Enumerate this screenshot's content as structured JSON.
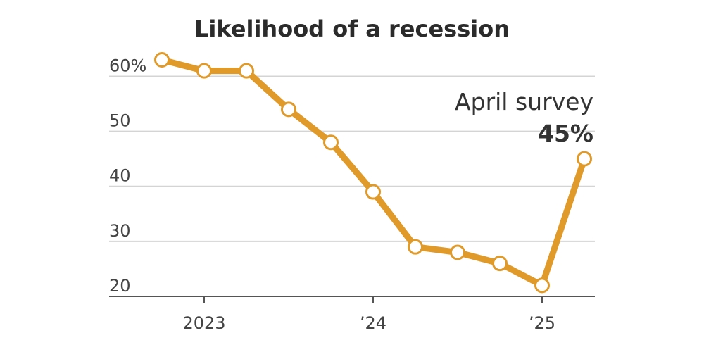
{
  "chart_data": {
    "type": "line",
    "title": "Likelihood of a recession",
    "y_tick_labels": [
      "60%",
      "50",
      "40",
      "30",
      "20"
    ],
    "y_ticks": [
      60,
      50,
      40,
      30,
      20
    ],
    "ylim": [
      20,
      63
    ],
    "x_tick_labels": [
      "2023",
      "’24",
      "’25"
    ],
    "x_ticks": [
      "2023-01",
      "2024-01",
      "2025-01"
    ],
    "grid": true,
    "series": [
      {
        "x": [
          "2022-10",
          "2023-01",
          "2023-04",
          "2023-07",
          "2023-10",
          "2024-01",
          "2024-04",
          "2024-07",
          "2024-10",
          "2025-01",
          "2025-04"
        ],
        "values": [
          63,
          61,
          61,
          54,
          48,
          39,
          29,
          28,
          26,
          22,
          45
        ],
        "color": "#e09a2a"
      }
    ],
    "annotation": {
      "label": "April survey",
      "value_label": "45%"
    }
  }
}
